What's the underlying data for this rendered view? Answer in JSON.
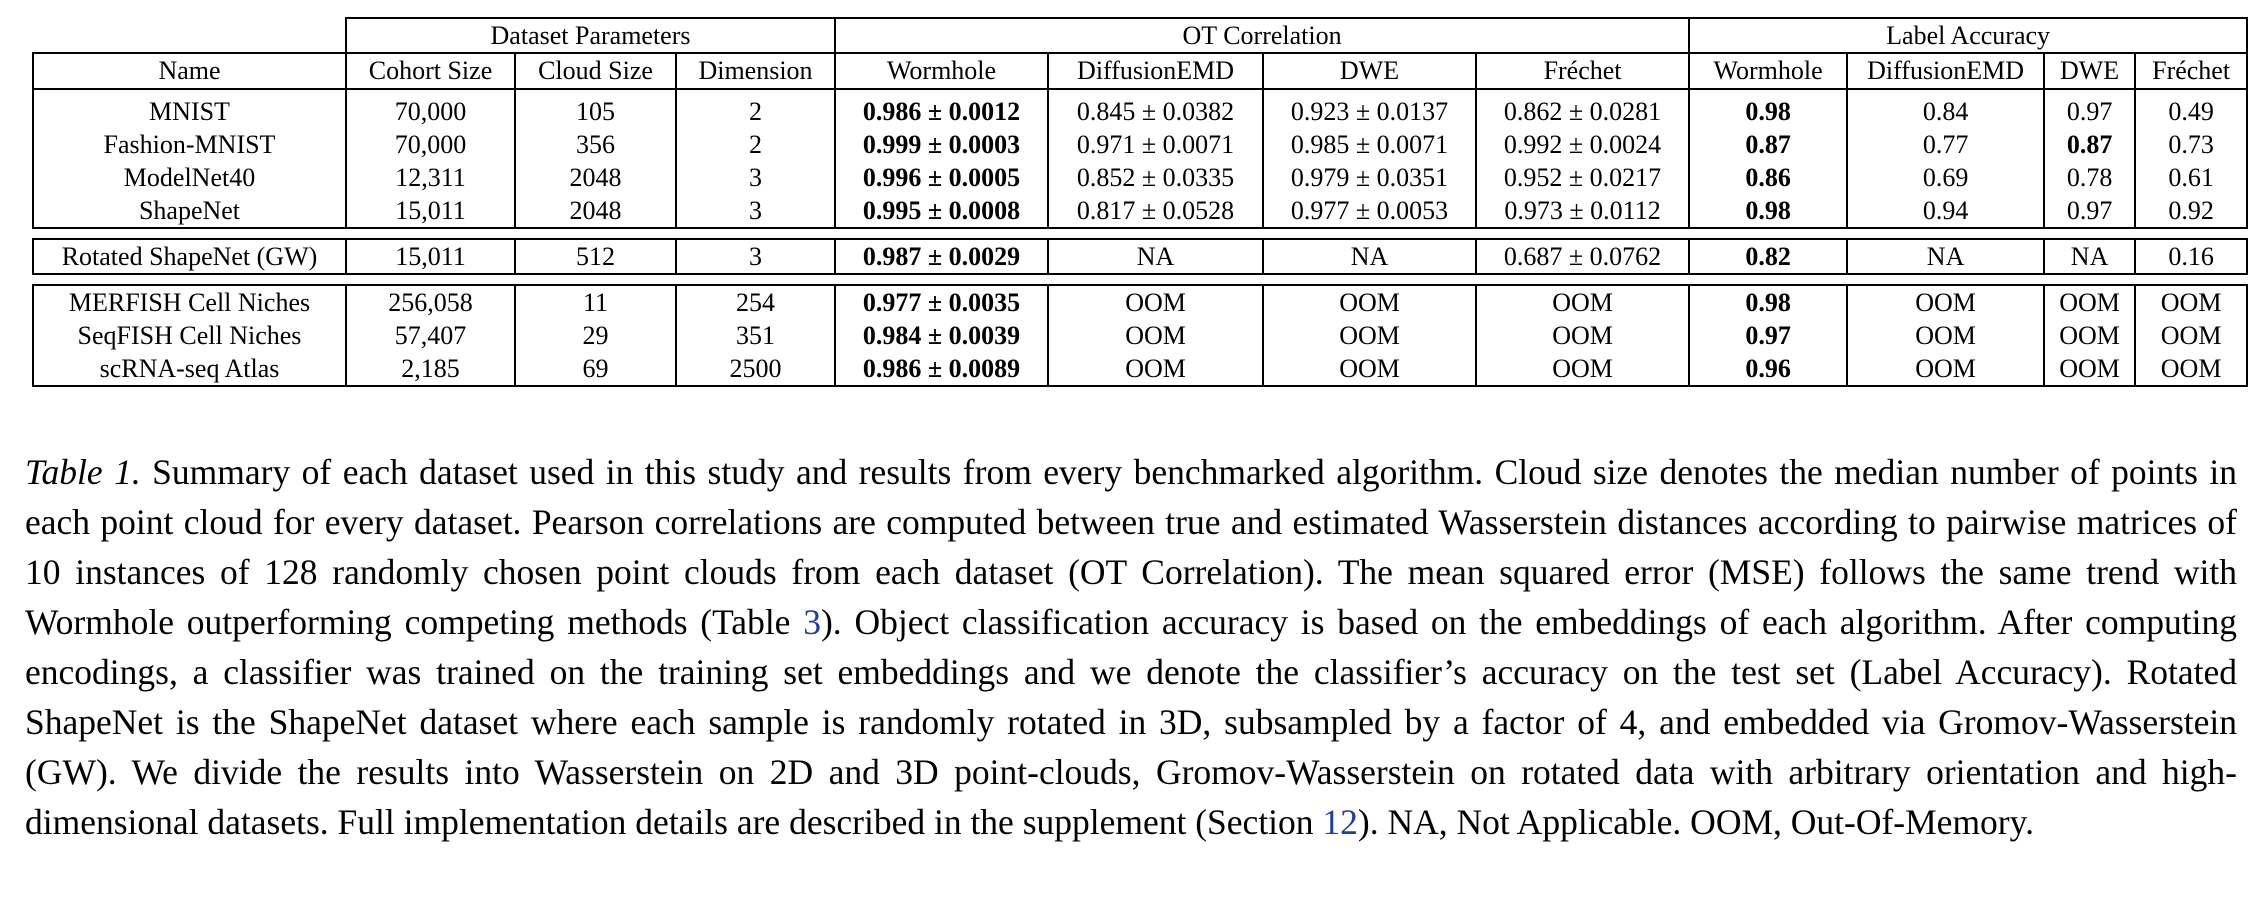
{
  "table": {
    "group_headers": [
      "Dataset Parameters",
      "OT Correlation",
      "Label Accuracy"
    ],
    "columns": [
      "Name",
      "Cohort Size",
      "Cloud Size",
      "Dimension",
      "Wormhole",
      "DiffusionEMD",
      "DWE",
      "Fréchet",
      "Wormhole",
      "DiffusionEMD",
      "DWE",
      "Fréchet"
    ],
    "blocks": [
      [
        [
          "MNIST",
          "70,000",
          "105",
          "2",
          "0.986 ± 0.0012",
          "0.845 ± 0.0382",
          "0.923 ± 0.0137",
          "0.862 ± 0.0281",
          "0.98",
          "0.84",
          "0.97",
          "0.49"
        ],
        [
          "Fashion-MNIST",
          "70,000",
          "356",
          "2",
          "0.999 ± 0.0003",
          "0.971 ± 0.0071",
          "0.985 ± 0.0071",
          "0.992 ± 0.0024",
          "0.87",
          "0.77",
          "0.87",
          "0.73"
        ],
        [
          "ModelNet40",
          "12,311",
          "2048",
          "3",
          "0.996 ± 0.0005",
          "0.852 ± 0.0335",
          "0.979 ± 0.0351",
          "0.952 ± 0.0217",
          "0.86",
          "0.69",
          "0.78",
          "0.61"
        ],
        [
          "ShapeNet",
          "15,011",
          "2048",
          "3",
          "0.995 ± 0.0008",
          "0.817 ± 0.0528",
          "0.977 ± 0.0053",
          "0.973 ± 0.0112",
          "0.98",
          "0.94",
          "0.97",
          "0.92"
        ]
      ],
      [
        [
          "Rotated ShapeNet (GW)",
          "15,011",
          "512",
          "3",
          "0.987 ± 0.0029",
          "NA",
          "NA",
          "0.687 ± 0.0762",
          "0.82",
          "NA",
          "NA",
          "0.16"
        ]
      ],
      [
        [
          "MERFISH Cell Niches",
          "256,058",
          "11",
          "254",
          "0.977 ± 0.0035",
          "OOM",
          "OOM",
          "OOM",
          "0.98",
          "OOM",
          "OOM",
          "OOM"
        ],
        [
          "SeqFISH Cell Niches",
          "57,407",
          "29",
          "351",
          "0.984 ± 0.0039",
          "OOM",
          "OOM",
          "OOM",
          "0.97",
          "OOM",
          "OOM",
          "OOM"
        ],
        [
          "scRNA-seq Atlas",
          "2,185",
          "69",
          "2500",
          "0.986 ± 0.0089",
          "OOM",
          "OOM",
          "OOM",
          "0.96",
          "OOM",
          "OOM",
          "OOM"
        ]
      ]
    ]
  },
  "caption": {
    "label": "Table 1.",
    "p1": " Summary of each dataset used in this study and results from every benchmarked algorithm. Cloud size denotes the median number of points in each point cloud for every dataset. Pearson correlations are computed between true and estimated Wasserstein distances according to pairwise matrices of 10 instances of 128 randomly chosen point clouds from each dataset (OT Correlation). The mean squared error (MSE) follows the same trend with Wormhole outperforming competing methods (Table ",
    "ref1": "3",
    "p2": "). Object classification accuracy is based on the embeddings of each algorithm. After computing encodings, a classifier was trained on the training set embeddings and we denote the classifier’s accuracy on the test set (Label Accuracy). Rotated ShapeNet is the ShapeNet dataset where each sample is randomly rotated in 3D, subsampled by a factor of 4, and embedded via Gromov-Wasserstein (GW). We divide the results into Wasserstein on 2D and 3D point-clouds, Gromov-Wasserstein on rotated data with arbitrary orientation and high-dimensional datasets. Full implementation details are described in the supplement (Section ",
    "ref2": "12",
    "p3": "). NA, Not Applicable. OOM, Out-Of-Memory."
  }
}
